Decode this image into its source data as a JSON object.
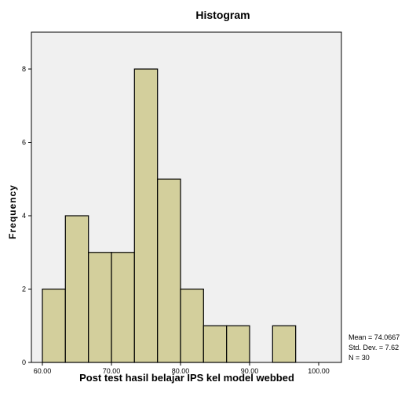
{
  "chart_data": {
    "type": "bar",
    "title": "Histogram",
    "xlabel": "Post test hasil belajar IPS kel model webbed",
    "ylabel": "Frequency",
    "bin_edges": [
      60,
      63.33,
      66.67,
      70,
      73.33,
      76.67,
      80,
      83.33,
      86.67,
      90,
      93.33,
      96.67,
      100
    ],
    "values": [
      2,
      4,
      3,
      3,
      8,
      5,
      2,
      1,
      1,
      0,
      1,
      0
    ],
    "xlim": [
      60,
      100
    ],
    "ylim": [
      0,
      8.5
    ],
    "x_ticks": [
      "60.00",
      "70.00",
      "80.00",
      "90.00",
      "100.00"
    ],
    "y_ticks": [
      "0",
      "2",
      "4",
      "6",
      "8"
    ],
    "bar_color": "#d3cf9c",
    "plot_background": "#f0f0f0",
    "grid": false
  },
  "stats": {
    "mean": "Mean = 74.0667",
    "std": "Std. Dev. = 7.62",
    "n": "N = 30"
  }
}
